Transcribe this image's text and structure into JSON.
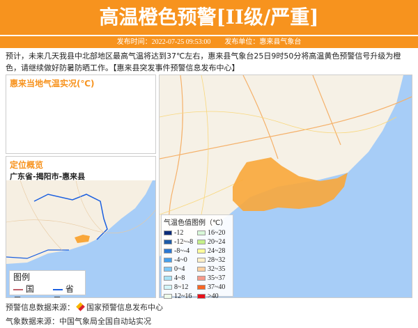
{
  "header": {
    "title": "高温橙色预警[II级/严重]",
    "publish_time": "发布时间：2022-07-25 09:53:00",
    "publisher": "发布单位：惠来县气象台"
  },
  "description": "预计，未来几天我县中北部地区最高气温将达到37℃左右，惠来县气象台25日9时50分将高温黄色预警信号升级为橙色，请继续做好防暑防晒工作。【惠来县突发事件预警信息发布中心】",
  "temp_panel": {
    "title": "惠来当地气温实况(℃)"
  },
  "location": {
    "title": "定位概览",
    "path": "广东省-揭阳市-惠来县",
    "legend_title": "图例",
    "legend_national": "国界",
    "legend_province": "省界",
    "colors": {
      "national": "#c0606a",
      "province": "#1a5fe0",
      "highlight": "#f9a73a",
      "sea": "#a7cdf7"
    }
  },
  "temp_legend": {
    "title": "气温色值图例（℃）",
    "items": [
      {
        "label": "-12",
        "color": "#0a2b7a"
      },
      {
        "label": "16~20",
        "color": "#d8f7d8"
      },
      {
        "label": "-12~-8",
        "color": "#1c5aa8"
      },
      {
        "label": "20~24",
        "color": "#c4f08a"
      },
      {
        "label": "-8~-4",
        "color": "#2a78d4"
      },
      {
        "label": "24~28",
        "color": "#fbfb9c"
      },
      {
        "label": "-4~0",
        "color": "#45a0ee"
      },
      {
        "label": "28~32",
        "color": "#fdf0c8"
      },
      {
        "label": "0~4",
        "color": "#7cc8f8"
      },
      {
        "label": "32~35",
        "color": "#fdd0a0"
      },
      {
        "label": "4~8",
        "color": "#a8e2f6"
      },
      {
        "label": "35~37",
        "color": "#f79a8a"
      },
      {
        "label": "8~12",
        "color": "#d4f6fa"
      },
      {
        "label": "37~40",
        "color": "#f86624"
      },
      {
        "label": "12~16",
        "color": "#eefbea"
      },
      {
        "label": ">40",
        "color": "#e8101a"
      }
    ]
  },
  "footer": {
    "warning_source": "预警信息数据来源：",
    "warning_source_name": "国家预警信息发布中心",
    "weather_source": "气象数据来源：中国气象局全国自动站实况"
  }
}
